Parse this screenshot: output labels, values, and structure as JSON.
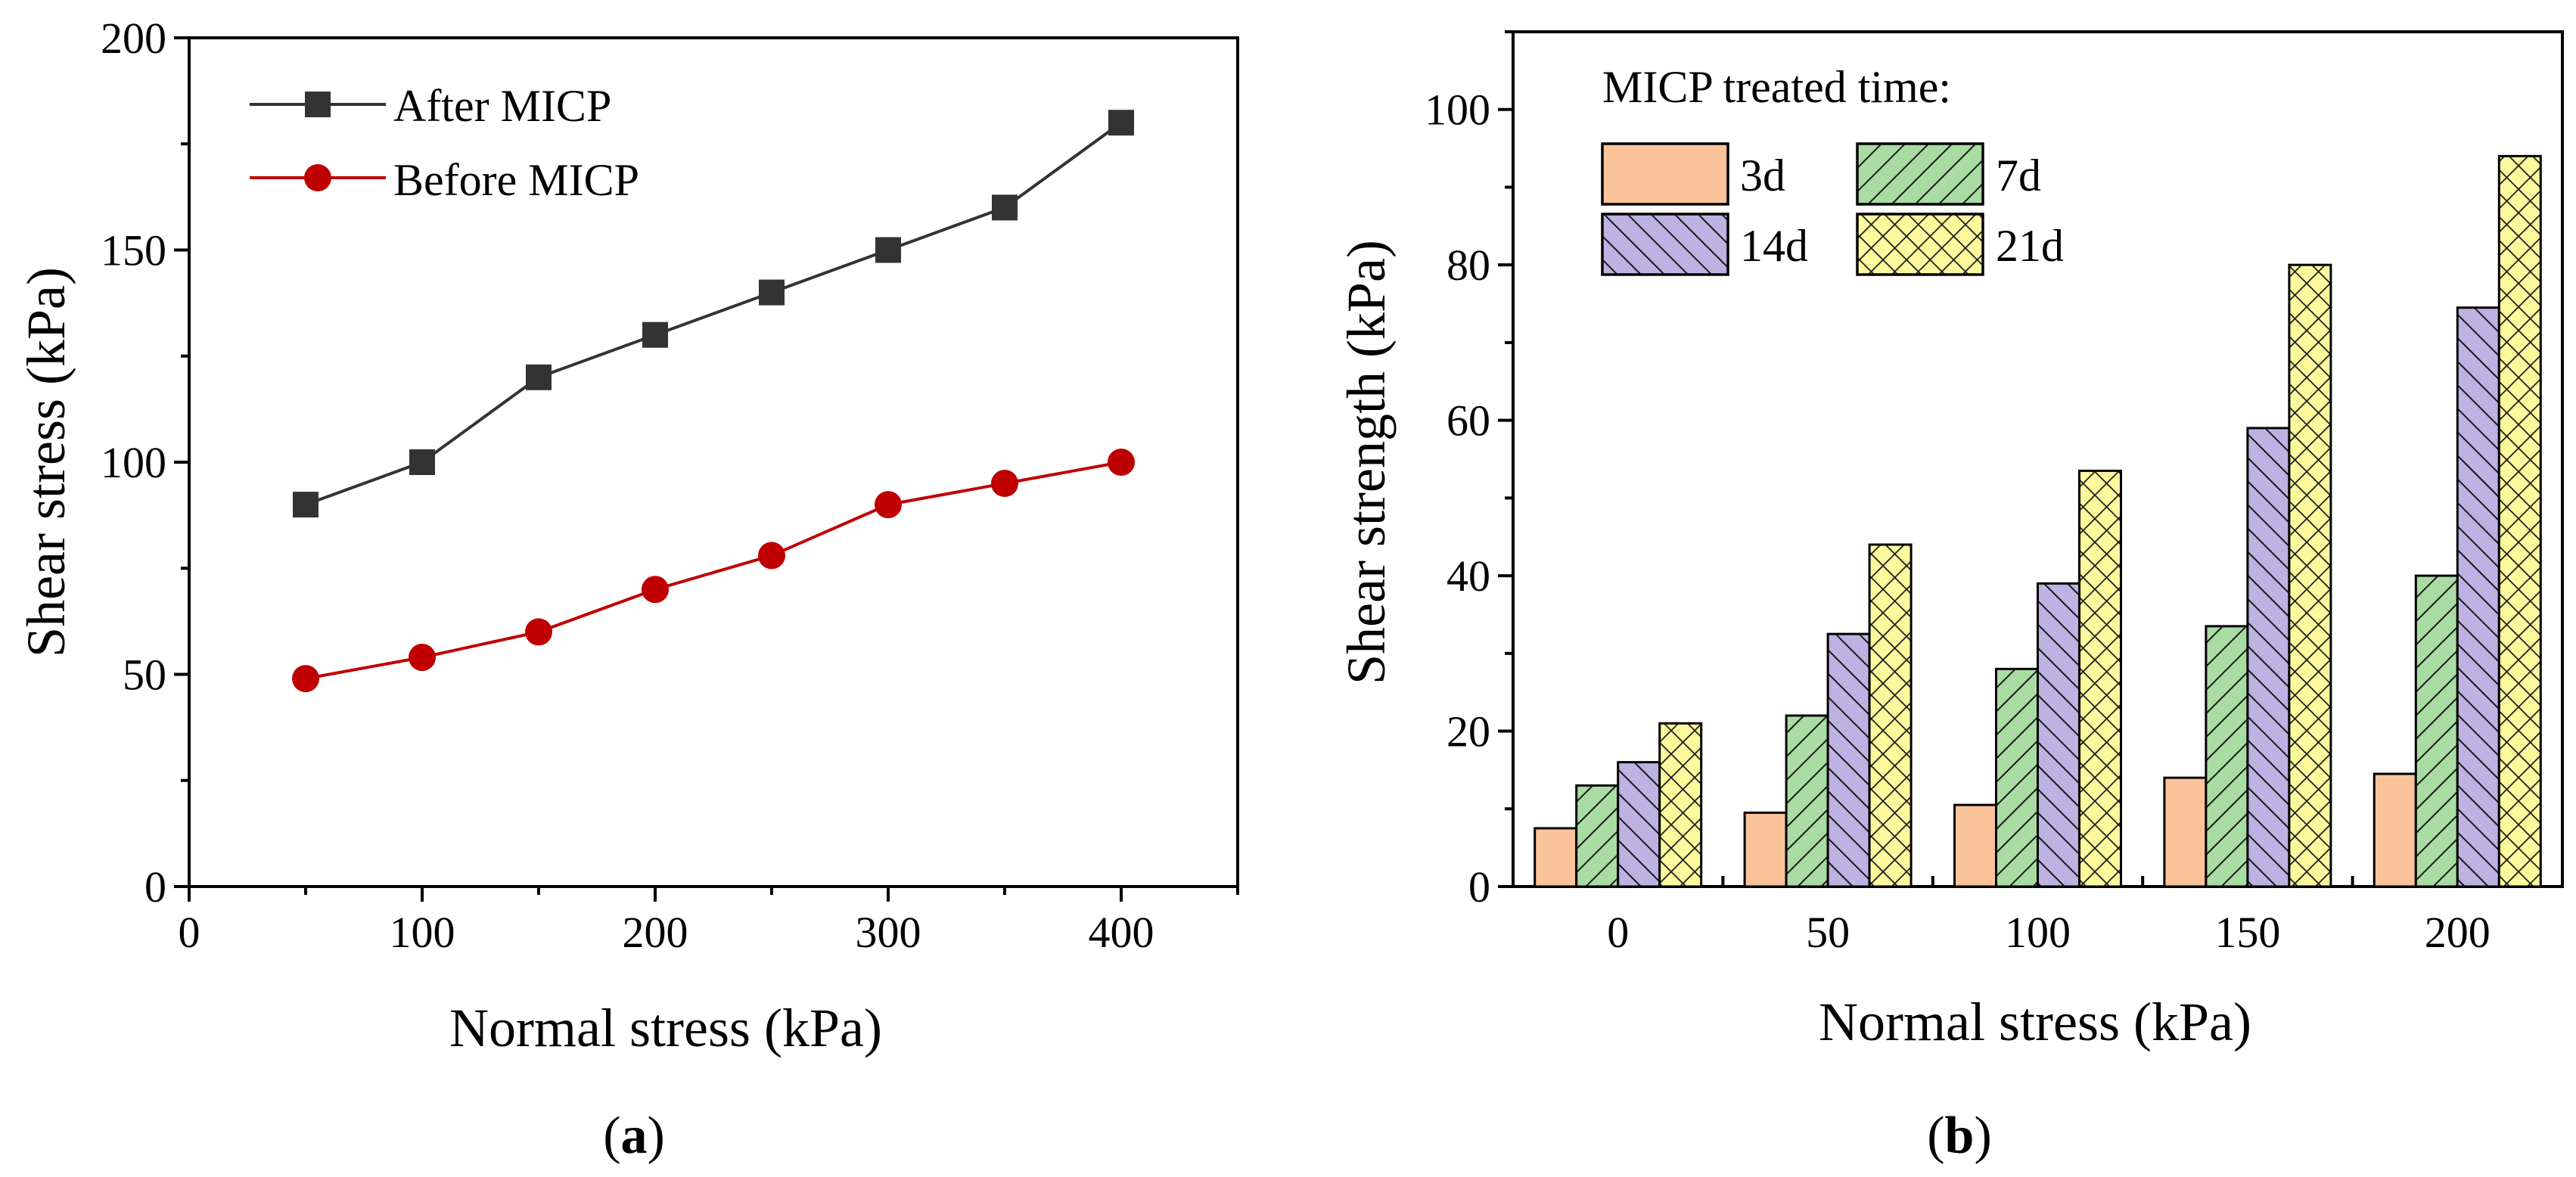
{
  "colors": {
    "after_micp": "#333333",
    "before_micp": "#c00000",
    "bar_3d": "#fbc39a",
    "bar_7d": "#a9dca3",
    "bar_14d": "#bdb2e2",
    "bar_21d": "#fdfa9e"
  },
  "chart_data": [
    {
      "panel": "a",
      "caption": {
        "open": "(",
        "letter": "a",
        "close": ")"
      },
      "type": "line",
      "title": "",
      "xlabel": "Normal stress (kPa)",
      "ylabel": "Shear stress (kPa)",
      "xlim": [
        0,
        450
      ],
      "ylim": [
        0,
        200
      ],
      "xticks": [
        "0",
        "100",
        "200",
        "300",
        "400"
      ],
      "yticks": [
        "0",
        "50",
        "100",
        "150",
        "200"
      ],
      "legend_position": "top-left",
      "x": [
        50,
        100,
        150,
        200,
        250,
        300,
        350,
        400
      ],
      "series": [
        {
          "name": "After MICP",
          "marker": "square",
          "values": [
            90,
            100,
            120,
            130,
            140,
            150,
            160,
            180
          ]
        },
        {
          "name": "Before MICP",
          "marker": "circle",
          "values": [
            49,
            54,
            60,
            70,
            78,
            90,
            95,
            100
          ]
        }
      ]
    },
    {
      "panel": "b",
      "caption": {
        "open": "(",
        "letter": "b",
        "close": ")"
      },
      "type": "bar",
      "title": "",
      "xlabel": "Normal stress (kPa)",
      "ylabel": "Shear strength (kPa)",
      "ylim": [
        0,
        110
      ],
      "yticks": [
        "0",
        "20",
        "40",
        "60",
        "80",
        "100"
      ],
      "categories": [
        "0",
        "50",
        "100",
        "150",
        "200"
      ],
      "legend_title": "MICP treated time:",
      "legend_position": "top-left",
      "series": [
        {
          "name": "3d",
          "pattern": "solid",
          "values": [
            7.5,
            9.5,
            10.5,
            14,
            14.5
          ]
        },
        {
          "name": "7d",
          "pattern": "hatch-right",
          "values": [
            13,
            22,
            28,
            33.5,
            40
          ]
        },
        {
          "name": "14d",
          "pattern": "hatch-left",
          "values": [
            16,
            32.5,
            39,
            59,
            74.5
          ]
        },
        {
          "name": "21d",
          "pattern": "crosshatch",
          "values": [
            21,
            44,
            53.5,
            80,
            94
          ]
        }
      ]
    }
  ]
}
